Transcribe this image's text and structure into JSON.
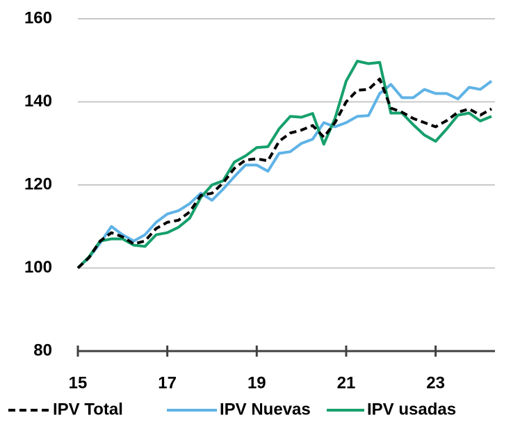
{
  "chart_data": {
    "type": "line",
    "x": [
      15,
      15.25,
      15.5,
      15.75,
      16,
      16.25,
      16.5,
      16.75,
      17,
      17.25,
      17.5,
      17.75,
      18,
      18.25,
      18.5,
      18.75,
      19,
      19.25,
      19.5,
      19.75,
      20,
      20.25,
      20.5,
      20.75,
      21,
      21.25,
      21.5,
      21.75,
      22,
      22.25,
      22.5,
      22.75,
      23,
      23.25,
      23.5,
      23.75,
      24,
      24.25
    ],
    "xlim": [
      15,
      24.25
    ],
    "xticks": [
      15,
      17,
      19,
      21,
      23
    ],
    "ylim": [
      80,
      160
    ],
    "yticks": [
      80,
      100,
      120,
      140,
      160
    ],
    "grid": true,
    "legend": "bottom",
    "series": [
      {
        "name": "IPV Total",
        "color": "#000000",
        "dash": true,
        "values": [
          100,
          102.5,
          106.5,
          108.5,
          107.5,
          105.8,
          106.5,
          109.5,
          111,
          111.5,
          113.5,
          117.5,
          118,
          120.5,
          124,
          126,
          126.3,
          125.8,
          130.5,
          132.5,
          133.2,
          134.3,
          131.5,
          135,
          140,
          142.8,
          143,
          145.5,
          138.5,
          137.5,
          136,
          135,
          134,
          135.5,
          137.5,
          138.3,
          136.8,
          138.3
        ]
      },
      {
        "name": "IPV Nuevas",
        "color": "#5fb3e6",
        "dash": false,
        "values": [
          100,
          102.5,
          106,
          110,
          108,
          106.5,
          108,
          111,
          113,
          113.8,
          115.5,
          118,
          116.3,
          119,
          122,
          124.8,
          124.8,
          123.3,
          127.6,
          128,
          130,
          131,
          135,
          134,
          135,
          136.5,
          136.7,
          142,
          144.2,
          141,
          141,
          143,
          142,
          142,
          140.7,
          143.5,
          143,
          145
        ]
      },
      {
        "name": "IPV usadas",
        "color": "#16a06c",
        "dash": false,
        "values": [
          100,
          102.7,
          106.5,
          107,
          107,
          105.5,
          105.2,
          108,
          108.5,
          109.8,
          112,
          117,
          120,
          121,
          125.5,
          127,
          129,
          129.2,
          133.5,
          136.5,
          136.3,
          137.2,
          129.8,
          136,
          145,
          149.8,
          149.2,
          149.5,
          137.3,
          137.3,
          134.5,
          132,
          130.5,
          133.5,
          136.8,
          137.3,
          135.4,
          136.5
        ]
      }
    ]
  }
}
